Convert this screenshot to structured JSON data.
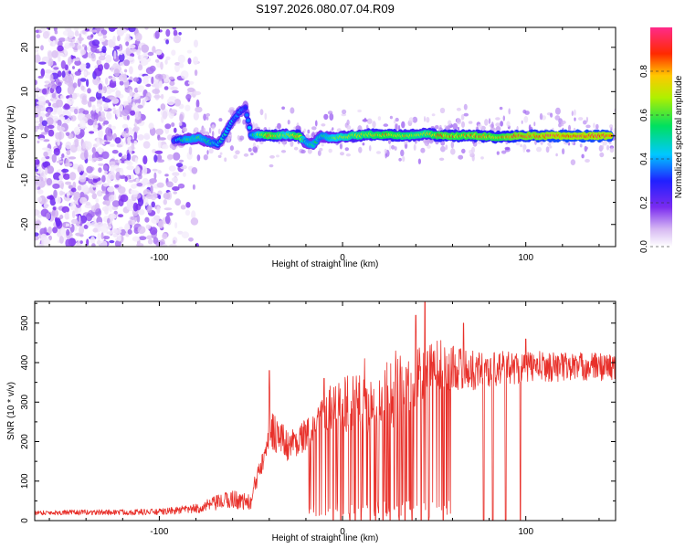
{
  "chart_data": [
    {
      "type": "heatmap",
      "title": "S197.2026.080.07.04.R09",
      "xlabel": "Height of straight line (km)",
      "ylabel": "Frequency (Hz)",
      "xlim": [
        -168,
        149
      ],
      "ylim": [
        -25,
        24.5
      ],
      "xticks": [
        -100,
        0,
        100
      ],
      "xtick_labels": [
        "-100",
        "0",
        "100"
      ],
      "yticks": [
        -20,
        -10,
        0,
        10,
        20
      ],
      "ytick_labels": [
        "-20",
        "-10",
        "0",
        "10",
        "20"
      ],
      "colorbar": {
        "label": "Normalized spectral amplitude",
        "range": [
          0,
          1
        ],
        "ticks": [
          0,
          0.2,
          0.4,
          0.6,
          0.8
        ],
        "tick_labels": [
          "0.0",
          "0.2",
          "0.4",
          "0.6",
          "0.8"
        ],
        "colormap": "rainbow (white → purple → blue → cyan → green → yellow → orange → red → magenta)"
      },
      "ridge": [
        {
          "x": -92,
          "y": -1.0,
          "amp": 0.35
        },
        {
          "x": -85,
          "y": -0.8,
          "amp": 0.55
        },
        {
          "x": -78,
          "y": -0.5,
          "amp": 0.55
        },
        {
          "x": -72,
          "y": -1.5,
          "amp": 0.5
        },
        {
          "x": -68,
          "y": -2.0,
          "amp": 0.45
        },
        {
          "x": -64,
          "y": 0.5,
          "amp": 0.45
        },
        {
          "x": -60,
          "y": 3.5,
          "amp": 0.4
        },
        {
          "x": -56,
          "y": 5.5,
          "amp": 0.4
        },
        {
          "x": -53,
          "y": 6.5,
          "amp": 0.35
        },
        {
          "x": -50,
          "y": 0.2,
          "amp": 0.45
        },
        {
          "x": -40,
          "y": 0.0,
          "amp": 0.85
        },
        {
          "x": -30,
          "y": 0.2,
          "amp": 0.6
        },
        {
          "x": -24,
          "y": 0.0,
          "amp": 0.85
        },
        {
          "x": -20,
          "y": -1.5,
          "amp": 0.5
        },
        {
          "x": -16,
          "y": -2.0,
          "amp": 0.55
        },
        {
          "x": -12,
          "y": 0.0,
          "amp": 0.5
        },
        {
          "x": -5,
          "y": -0.5,
          "amp": 0.6
        },
        {
          "x": 5,
          "y": 0.0,
          "amp": 0.7
        },
        {
          "x": 15,
          "y": 0.3,
          "amp": 0.75
        },
        {
          "x": 25,
          "y": 0.2,
          "amp": 0.8
        },
        {
          "x": 35,
          "y": 0.0,
          "amp": 0.75
        },
        {
          "x": 45,
          "y": 0.5,
          "amp": 0.7
        },
        {
          "x": 55,
          "y": 0.0,
          "amp": 0.85
        },
        {
          "x": 65,
          "y": 0.0,
          "amp": 0.8
        },
        {
          "x": 75,
          "y": 0.0,
          "amp": 0.85
        },
        {
          "x": 85,
          "y": -0.3,
          "amp": 0.8
        },
        {
          "x": 95,
          "y": 0.0,
          "amp": 0.9
        },
        {
          "x": 105,
          "y": 0.0,
          "amp": 0.9
        },
        {
          "x": 115,
          "y": 0.0,
          "amp": 0.95
        },
        {
          "x": 130,
          "y": 0.0,
          "amp": 0.95
        },
        {
          "x": 147,
          "y": 0.0,
          "amp": 0.95
        }
      ]
    },
    {
      "type": "line",
      "xlabel": "Height of straight line (km)",
      "ylabel": "SNR (10 * v/v)",
      "xlim": [
        -168,
        149
      ],
      "ylim": [
        0,
        555
      ],
      "xticks": [
        -100,
        0,
        100
      ],
      "xtick_labels": [
        "-100",
        "0",
        "100"
      ],
      "yticks": [
        0,
        100,
        200,
        300,
        400,
        500
      ],
      "ytick_labels": [
        "0",
        "100",
        "200",
        "300",
        "400",
        "500"
      ],
      "color": "#e8302a",
      "envelope": [
        {
          "x": -168,
          "base": 20,
          "noise": 6
        },
        {
          "x": -100,
          "base": 22,
          "noise": 8
        },
        {
          "x": -80,
          "base": 30,
          "noise": 12
        },
        {
          "x": -60,
          "base": 55,
          "noise": 25
        },
        {
          "x": -50,
          "base": 45,
          "noise": 20
        },
        {
          "x": -40,
          "base": 240,
          "noise": 60
        },
        {
          "x": -30,
          "base": 190,
          "noise": 40
        },
        {
          "x": -15,
          "base": 230,
          "noise": 40
        },
        {
          "x": -5,
          "base": 300,
          "noise": 70
        },
        {
          "x": 10,
          "base": 290,
          "noise": 80
        },
        {
          "x": 30,
          "base": 330,
          "noise": 90
        },
        {
          "x": 50,
          "base": 400,
          "noise": 70
        },
        {
          "x": 70,
          "base": 380,
          "noise": 50
        },
        {
          "x": 100,
          "base": 390,
          "noise": 40
        },
        {
          "x": 149,
          "base": 390,
          "noise": 35
        }
      ],
      "spikes": [
        {
          "x": -40,
          "y": 380
        },
        {
          "x": -10,
          "y": 360
        },
        {
          "x": 12,
          "y": 410
        },
        {
          "x": 29,
          "y": 430
        },
        {
          "x": 40,
          "y": 520
        },
        {
          "x": 45,
          "y": 553
        },
        {
          "x": 66,
          "y": 500
        },
        {
          "x": 100,
          "y": 460
        }
      ],
      "dropouts": [
        -5,
        -1,
        4,
        7,
        10,
        15,
        18,
        22,
        26,
        31,
        34,
        38,
        43,
        47,
        55,
        77,
        82,
        89,
        97
      ]
    }
  ]
}
